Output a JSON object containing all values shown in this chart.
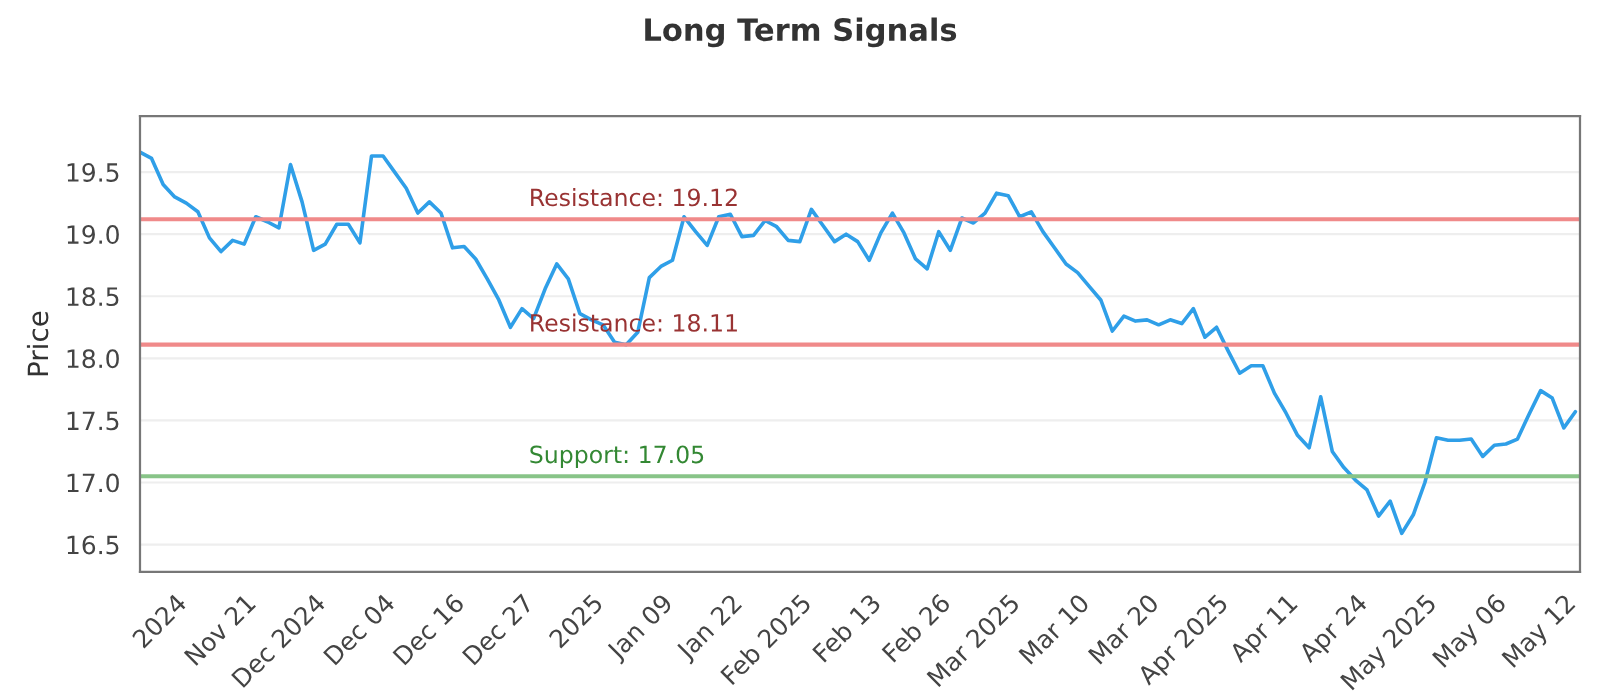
{
  "chart_data": {
    "type": "line",
    "title": "Long Term Signals",
    "ylabel": "Price",
    "categories": [
      null,
      null,
      null,
      "2024",
      null,
      null,
      null,
      null,
      null,
      "Nov 21",
      null,
      null,
      null,
      null,
      null,
      "Dec 2024",
      null,
      null,
      null,
      null,
      null,
      "Dec 04",
      null,
      null,
      null,
      null,
      null,
      "Dec 16",
      null,
      null,
      null,
      null,
      null,
      "Dec 27",
      null,
      null,
      null,
      null,
      null,
      "2025",
      null,
      null,
      null,
      null,
      null,
      "Jan 09",
      null,
      null,
      null,
      null,
      null,
      "Jan 22",
      null,
      null,
      null,
      null,
      null,
      "Feb 2025",
      null,
      null,
      null,
      null,
      null,
      "Feb 13",
      null,
      null,
      null,
      null,
      null,
      "Feb 26",
      null,
      null,
      null,
      null,
      null,
      "Mar 2025",
      null,
      null,
      null,
      null,
      null,
      "Mar 10",
      null,
      null,
      null,
      null,
      null,
      "Mar 20",
      null,
      null,
      null,
      null,
      null,
      "Apr 2025",
      null,
      null,
      null,
      null,
      null,
      "Apr 11",
      null,
      null,
      null,
      null,
      null,
      "Apr 24",
      null,
      null,
      null,
      null,
      null,
      "May 2025",
      null,
      null,
      null,
      null,
      null,
      "May 06",
      null,
      null,
      null,
      null,
      null,
      "May 12",
      null
    ],
    "series": [
      {
        "color": "#2f9fe8",
        "values": [
          19.66,
          19.61,
          19.4,
          19.3,
          19.25,
          19.18,
          18.97,
          18.86,
          18.95,
          18.92,
          19.14,
          19.1,
          19.05,
          19.56,
          19.26,
          18.87,
          18.92,
          19.08,
          19.08,
          18.93,
          19.63,
          19.63,
          19.5,
          19.37,
          19.17,
          19.26,
          19.17,
          18.89,
          18.9,
          18.8,
          18.64,
          18.47,
          18.25,
          18.4,
          18.32,
          18.56,
          18.76,
          18.64,
          18.36,
          18.31,
          18.27,
          18.13,
          18.11,
          18.21,
          18.65,
          18.74,
          18.79,
          19.14,
          19.02,
          18.91,
          19.14,
          19.16,
          18.98,
          18.99,
          19.11,
          19.06,
          18.95,
          18.94,
          19.2,
          19.07,
          18.94,
          19.0,
          18.94,
          18.79,
          19.01,
          19.17,
          19.01,
          18.8,
          18.72,
          19.02,
          18.87,
          19.13,
          19.09,
          19.17,
          19.33,
          19.31,
          19.14,
          19.18,
          19.02,
          18.89,
          18.76,
          18.69,
          18.58,
          18.47,
          18.22,
          18.34,
          18.3,
          18.31,
          18.27,
          18.31,
          18.28,
          18.4,
          18.17,
          18.25,
          18.06,
          17.88,
          17.94,
          17.94,
          17.72,
          17.56,
          17.38,
          17.28,
          17.69,
          17.25,
          17.12,
          17.02,
          16.94,
          16.73,
          16.85,
          16.59,
          16.74,
          17.0,
          17.36,
          17.34,
          17.34,
          17.35,
          17.21,
          17.3,
          17.31,
          17.35,
          17.55,
          17.74,
          17.68,
          17.44,
          17.57
        ]
      }
    ],
    "ylim": [
      16.28,
      19.95
    ],
    "yticks": [
      16.5,
      {
        "value": 17,
        "label": "17.0"
      },
      17.5,
      {
        "value": 18,
        "label": "18.0"
      },
      18.5,
      {
        "value": 19,
        "label": "19.0"
      },
      19.5
    ],
    "ref_lines": [
      {
        "axis": "y",
        "value": 19.12,
        "label": "Resistance: 19.12",
        "color": "#f08a8a"
      },
      {
        "axis": "y",
        "value": 18.11,
        "label": "Resistance: 18.11",
        "color": "#f08a8a"
      },
      {
        "axis": "y",
        "value": 17.05,
        "label": "Support: 17.05",
        "color": "#88c488"
      }
    ],
    "grid": "y",
    "marker": "none",
    "line_style": "solid"
  }
}
